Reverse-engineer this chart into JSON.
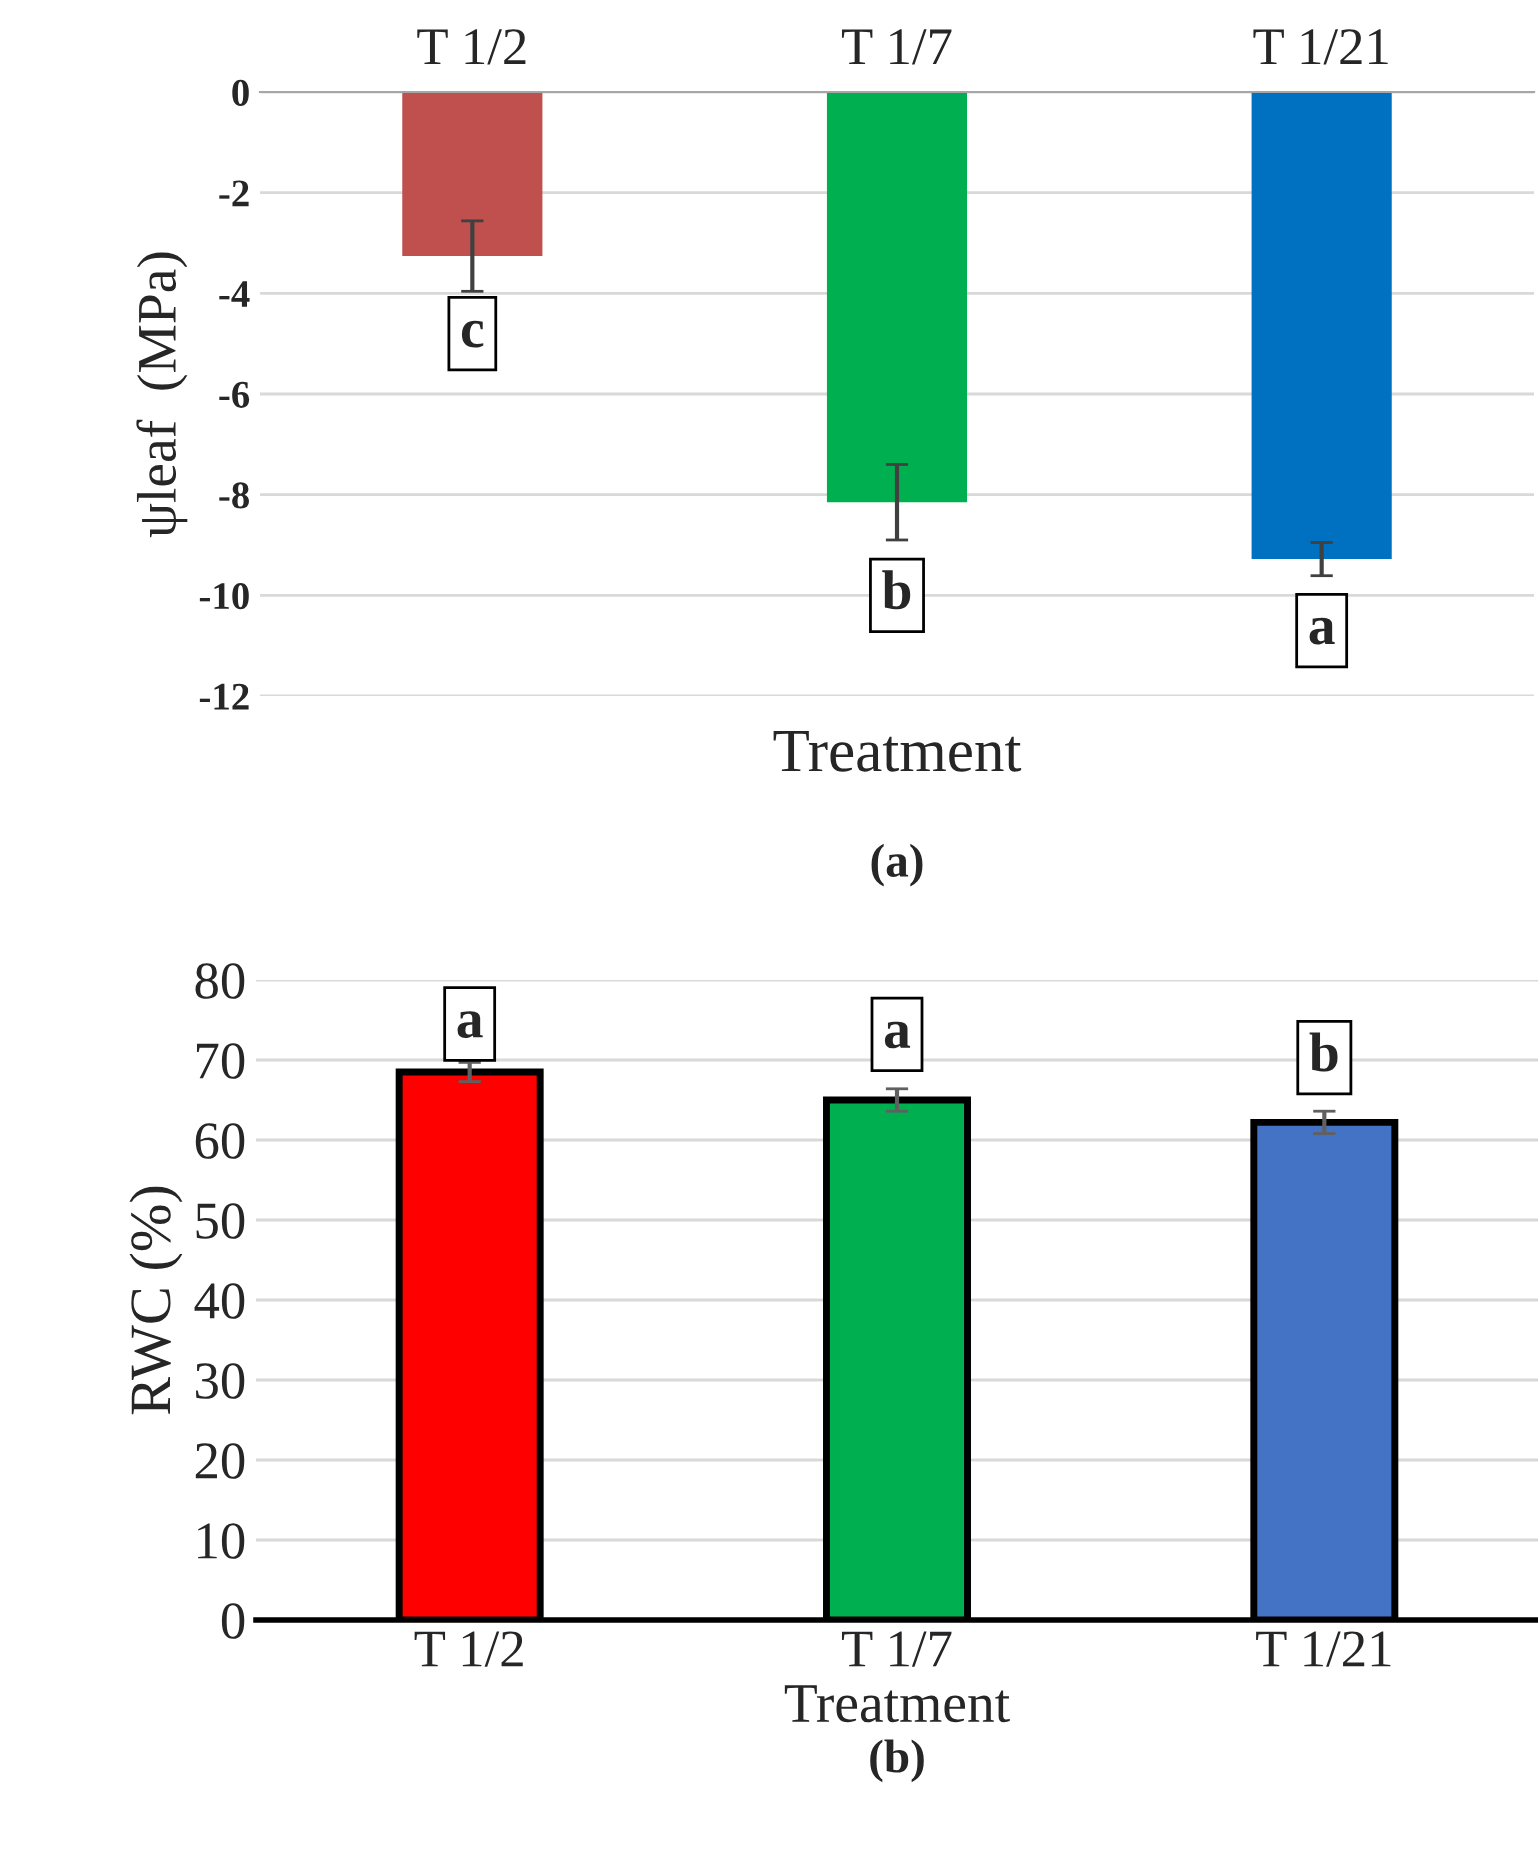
{
  "chart_data": [
    {
      "type": "bar",
      "categories": [
        "T 1/2",
        "T 1/7",
        "T 1/21"
      ],
      "values": [
        -3.26,
        -8.15,
        -9.28
      ],
      "errors": [
        0.7,
        0.75,
        0.33
      ],
      "colors": [
        "#c0504d",
        "#00b050",
        "#0070c0"
      ],
      "ylim": [
        -12,
        0
      ],
      "yticks": [
        -12,
        -10,
        -8,
        -6,
        -4,
        -2,
        0
      ],
      "grid": "y",
      "xlabel": "Treatment",
      "ylabel": "ψleaf  (MPa)",
      "annotations": [
        {
          "text": "c",
          "x": "T 1/2",
          "y": -4.8
        },
        {
          "text": "b",
          "x": "T 1/7",
          "y": -10.0
        },
        {
          "text": "a",
          "x": "T 1/21",
          "y": -10.7
        },
        "(a)"
      ]
    },
    {
      "type": "bar",
      "categories": [
        "T 1/2",
        "T 1/7",
        "T 1/21"
      ],
      "values": [
        68.5,
        65.0,
        62.2
      ],
      "errors": [
        1.2,
        1.4,
        1.4
      ],
      "colors": [
        "#ff0000",
        "#00b050",
        "#4472c4"
      ],
      "ylim": [
        0,
        80
      ],
      "yticks": [
        0,
        10,
        20,
        30,
        40,
        50,
        60,
        70,
        80
      ],
      "grid": "y",
      "xlabel": "Treatment",
      "ylabel": "RWC (%)",
      "annotations": [
        {
          "text": "a",
          "x": "T 1/2",
          "y": 74.5
        },
        {
          "text": "a",
          "x": "T 1/7",
          "y": 73.2
        },
        {
          "text": "b",
          "x": "T 1/21",
          "y": 70.3
        },
        "(b)"
      ]
    }
  ]
}
